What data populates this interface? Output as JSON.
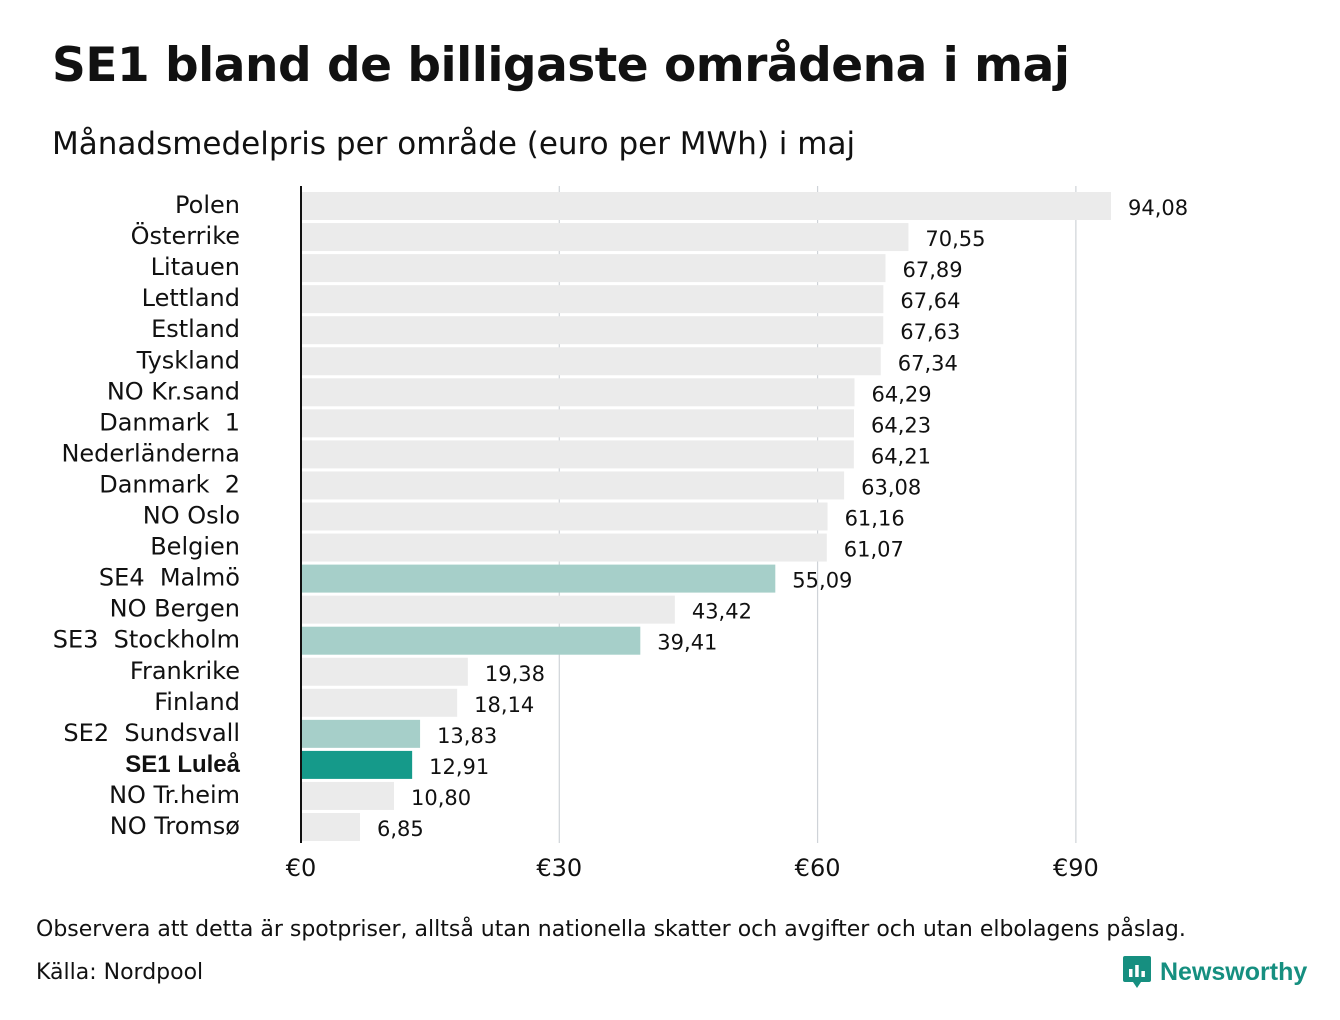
{
  "title": "SE1 bland de billigaste områdena i maj",
  "subtitle": "Månadsmedelpris per område (euro per MWh) i maj",
  "footer": {
    "note": "Observera att detta är spotpriser, alltså utan nationella skatter och avgifter och utan elbolagens påslag.",
    "source": "Källa: Nordpool",
    "brand": "Newsworthy",
    "brand_icon": "newsworthy-logo-icon"
  },
  "colors": {
    "default_bar": "#ebebeb",
    "swedish_bar": "#a6cfc9",
    "highlight_bar": "#159a8a",
    "brand": "#168f80"
  },
  "chart_data": {
    "type": "bar",
    "orientation": "horizontal",
    "categories": [
      "Polen",
      "Österrike",
      "Litauen",
      "Lettland",
      "Estland",
      "Tyskland",
      "NO Kr.sand",
      "Danmark  1",
      "Nederländerna",
      "Danmark  2",
      "NO Oslo",
      "Belgien",
      "SE4  Malmö",
      "NO Bergen",
      "SE3  Stockholm",
      "Frankrike",
      "Finland",
      "SE2  Sundsvall",
      "SE1 Luleå",
      "NO Tr.heim",
      "NO Tromsø"
    ],
    "values": [
      94.08,
      70.55,
      67.89,
      67.64,
      67.63,
      67.34,
      64.29,
      64.23,
      64.21,
      63.08,
      61.16,
      61.07,
      55.09,
      43.42,
      39.41,
      19.38,
      18.14,
      13.83,
      12.91,
      10.8,
      6.85
    ],
    "value_labels": [
      "94,08",
      "70,55",
      "67,89",
      "67,64",
      "67,63",
      "67,34",
      "64,29",
      "64,23",
      "64,21",
      "63,08",
      "61,16",
      "61,07",
      "55,09",
      "43,42",
      "39,41",
      "19,38",
      "18,14",
      "13,83",
      "12,91",
      "10,80",
      "6,85"
    ],
    "bar_group": [
      "other",
      "other",
      "other",
      "other",
      "other",
      "other",
      "other",
      "other",
      "other",
      "other",
      "other",
      "other",
      "sweden",
      "other",
      "sweden",
      "other",
      "other",
      "sweden",
      "highlight",
      "other",
      "other"
    ],
    "bold_category": "SE1 Luleå",
    "x_ticks": [
      0,
      30,
      60,
      90
    ],
    "x_tick_labels": [
      "€0",
      "€30",
      "€60",
      "€90"
    ],
    "xlim": [
      0,
      100
    ],
    "grid": true
  }
}
